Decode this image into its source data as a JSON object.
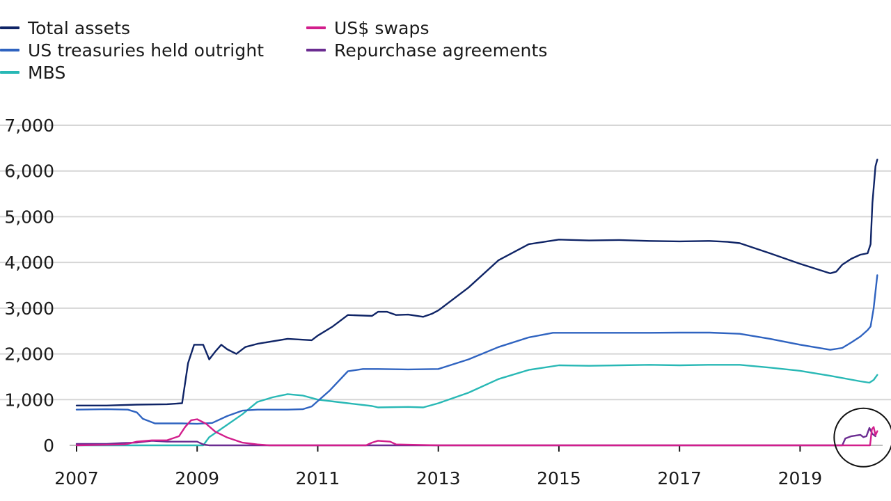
{
  "chart_data": {
    "type": "line",
    "title": "",
    "xlabel": "",
    "ylabel": "",
    "xlim": [
      2007.0,
      2020.3
    ],
    "ylim": [
      0,
      7000
    ],
    "yticks": [
      0,
      1000,
      2000,
      3000,
      4000,
      5000,
      6000,
      7000
    ],
    "ytick_labels": [
      "0",
      "1,000",
      "2,000",
      "3,000",
      "4,000",
      "5,000",
      "6,000",
      "7,000"
    ],
    "xticks": [
      2007,
      2009,
      2011,
      2013,
      2015,
      2017,
      2019
    ],
    "xtick_labels": [
      "2007",
      "2009",
      "2011",
      "2013",
      "2015",
      "2017",
      "2019"
    ],
    "grid": "horizontal",
    "legend_position": "top-left",
    "annotation": "circle highlighting late-2019 repurchase agreements and 2020 US$ swaps",
    "series": [
      {
        "name": "Total assets",
        "color": "#0f2466",
        "points": [
          [
            2007.0,
            870
          ],
          [
            2007.5,
            870
          ],
          [
            2008.0,
            890
          ],
          [
            2008.5,
            900
          ],
          [
            2008.75,
            920
          ],
          [
            2008.85,
            1800
          ],
          [
            2008.95,
            2200
          ],
          [
            2009.1,
            2200
          ],
          [
            2009.2,
            1880
          ],
          [
            2009.3,
            2050
          ],
          [
            2009.4,
            2200
          ],
          [
            2009.5,
            2100
          ],
          [
            2009.65,
            2000
          ],
          [
            2009.8,
            2150
          ],
          [
            2010.0,
            2220
          ],
          [
            2010.5,
            2330
          ],
          [
            2010.9,
            2300
          ],
          [
            2011.0,
            2400
          ],
          [
            2011.25,
            2600
          ],
          [
            2011.5,
            2850
          ],
          [
            2011.9,
            2830
          ],
          [
            2012.0,
            2920
          ],
          [
            2012.15,
            2920
          ],
          [
            2012.3,
            2850
          ],
          [
            2012.5,
            2860
          ],
          [
            2012.75,
            2810
          ],
          [
            2012.9,
            2880
          ],
          [
            2013.0,
            2950
          ],
          [
            2013.5,
            3450
          ],
          [
            2014.0,
            4050
          ],
          [
            2014.5,
            4400
          ],
          [
            2015.0,
            4500
          ],
          [
            2015.5,
            4480
          ],
          [
            2016.0,
            4490
          ],
          [
            2016.5,
            4470
          ],
          [
            2017.0,
            4460
          ],
          [
            2017.5,
            4470
          ],
          [
            2017.8,
            4450
          ],
          [
            2018.0,
            4420
          ],
          [
            2018.5,
            4200
          ],
          [
            2019.0,
            3970
          ],
          [
            2019.5,
            3760
          ],
          [
            2019.6,
            3800
          ],
          [
            2019.7,
            3950
          ],
          [
            2019.85,
            4080
          ],
          [
            2020.0,
            4170
          ],
          [
            2020.12,
            4200
          ],
          [
            2020.17,
            4400
          ],
          [
            2020.2,
            5300
          ],
          [
            2020.25,
            6100
          ],
          [
            2020.28,
            6250
          ]
        ]
      },
      {
        "name": "US treasuries held outright",
        "color": "#2f63c0",
        "points": [
          [
            2007.0,
            780
          ],
          [
            2007.5,
            790
          ],
          [
            2007.85,
            780
          ],
          [
            2008.0,
            720
          ],
          [
            2008.1,
            580
          ],
          [
            2008.3,
            480
          ],
          [
            2008.5,
            480
          ],
          [
            2008.75,
            480
          ],
          [
            2009.0,
            470
          ],
          [
            2009.25,
            490
          ],
          [
            2009.5,
            640
          ],
          [
            2009.75,
            760
          ],
          [
            2010.0,
            780
          ],
          [
            2010.5,
            780
          ],
          [
            2010.75,
            790
          ],
          [
            2010.9,
            850
          ],
          [
            2011.2,
            1200
          ],
          [
            2011.5,
            1620
          ],
          [
            2011.75,
            1670
          ],
          [
            2012.0,
            1670
          ],
          [
            2012.5,
            1660
          ],
          [
            2013.0,
            1670
          ],
          [
            2013.5,
            1880
          ],
          [
            2014.0,
            2150
          ],
          [
            2014.5,
            2360
          ],
          [
            2014.9,
            2460
          ],
          [
            2015.5,
            2460
          ],
          [
            2016.0,
            2460
          ],
          [
            2016.5,
            2460
          ],
          [
            2017.0,
            2465
          ],
          [
            2017.5,
            2465
          ],
          [
            2018.0,
            2440
          ],
          [
            2018.5,
            2330
          ],
          [
            2019.0,
            2200
          ],
          [
            2019.5,
            2090
          ],
          [
            2019.7,
            2130
          ],
          [
            2019.85,
            2250
          ],
          [
            2020.0,
            2380
          ],
          [
            2020.12,
            2520
          ],
          [
            2020.17,
            2600
          ],
          [
            2020.22,
            3000
          ],
          [
            2020.28,
            3720
          ]
        ]
      },
      {
        "name": "MBS",
        "color": "#28b8b5",
        "points": [
          [
            2007.0,
            0
          ],
          [
            2009.0,
            0
          ],
          [
            2009.1,
            0
          ],
          [
            2009.2,
            180
          ],
          [
            2009.5,
            450
          ],
          [
            2009.75,
            680
          ],
          [
            2010.0,
            950
          ],
          [
            2010.25,
            1050
          ],
          [
            2010.5,
            1120
          ],
          [
            2010.75,
            1090
          ],
          [
            2011.0,
            1000
          ],
          [
            2011.5,
            920
          ],
          [
            2011.9,
            860
          ],
          [
            2012.0,
            830
          ],
          [
            2012.5,
            840
          ],
          [
            2012.75,
            830
          ],
          [
            2013.0,
            920
          ],
          [
            2013.5,
            1150
          ],
          [
            2014.0,
            1450
          ],
          [
            2014.5,
            1650
          ],
          [
            2015.0,
            1750
          ],
          [
            2015.5,
            1740
          ],
          [
            2016.0,
            1750
          ],
          [
            2016.5,
            1760
          ],
          [
            2017.0,
            1750
          ],
          [
            2017.5,
            1760
          ],
          [
            2018.0,
            1760
          ],
          [
            2018.5,
            1700
          ],
          [
            2019.0,
            1630
          ],
          [
            2019.5,
            1520
          ],
          [
            2020.0,
            1400
          ],
          [
            2020.15,
            1370
          ],
          [
            2020.22,
            1430
          ],
          [
            2020.28,
            1540
          ]
        ]
      },
      {
        "name": "US$ swaps",
        "color": "#d21e8c",
        "points": [
          [
            2007.0,
            0
          ],
          [
            2007.8,
            20
          ],
          [
            2008.0,
            80
          ],
          [
            2008.25,
            110
          ],
          [
            2008.5,
            110
          ],
          [
            2008.7,
            200
          ],
          [
            2008.8,
            400
          ],
          [
            2008.9,
            550
          ],
          [
            2009.0,
            570
          ],
          [
            2009.15,
            470
          ],
          [
            2009.3,
            300
          ],
          [
            2009.5,
            170
          ],
          [
            2009.75,
            60
          ],
          [
            2010.0,
            20
          ],
          [
            2010.2,
            0
          ],
          [
            2011.8,
            0
          ],
          [
            2011.9,
            60
          ],
          [
            2012.0,
            100
          ],
          [
            2012.2,
            80
          ],
          [
            2012.3,
            20
          ],
          [
            2013.0,
            0
          ],
          [
            2020.1,
            0
          ],
          [
            2020.16,
            0
          ],
          [
            2020.19,
            350
          ],
          [
            2020.22,
            400
          ],
          [
            2020.25,
            220
          ],
          [
            2020.28,
            310
          ]
        ]
      },
      {
        "name": "Repurchase agreements",
        "color": "#6b2c91",
        "points": [
          [
            2007.0,
            30
          ],
          [
            2007.5,
            30
          ],
          [
            2007.75,
            50
          ],
          [
            2008.0,
            60
          ],
          [
            2008.25,
            100
          ],
          [
            2008.5,
            80
          ],
          [
            2008.75,
            80
          ],
          [
            2009.0,
            80
          ],
          [
            2009.1,
            20
          ],
          [
            2009.2,
            0
          ],
          [
            2019.7,
            0
          ],
          [
            2019.75,
            150
          ],
          [
            2019.85,
            200
          ],
          [
            2020.0,
            230
          ],
          [
            2020.05,
            180
          ],
          [
            2020.1,
            200
          ],
          [
            2020.15,
            380
          ],
          [
            2020.2,
            250
          ],
          [
            2020.25,
            200
          ]
        ]
      }
    ]
  }
}
